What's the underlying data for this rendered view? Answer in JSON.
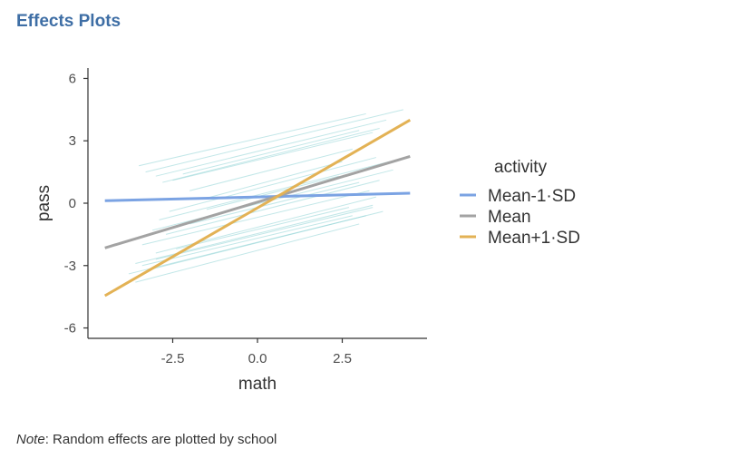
{
  "page": {
    "title": "Effects Plots",
    "note_label": "Note",
    "note_text": ": Random effects are plotted by school"
  },
  "chart_data": {
    "type": "line",
    "title": "",
    "xlabel": "math",
    "ylabel": "pass",
    "xlim": [
      -5,
      5
    ],
    "ylim": [
      -6.5,
      6.5
    ],
    "x_ticks": [
      -2.5,
      0.0,
      2.5
    ],
    "x_tick_labels": [
      "-2.5",
      "0.0",
      "2.5"
    ],
    "y_ticks": [
      -6,
      -3,
      0,
      3,
      6
    ],
    "y_tick_labels": [
      "-6",
      "-3",
      "0",
      "3",
      "6"
    ],
    "grid": false,
    "legend": {
      "title": "activity",
      "position": "right"
    },
    "series": [
      {
        "name": "Mean-1·SD",
        "color": "#7ba3e3",
        "x": [
          -4.5,
          4.5
        ],
        "y": [
          0.12,
          0.48
        ]
      },
      {
        "name": "Mean",
        "color": "#a3a3a3",
        "x": [
          -4.5,
          4.5
        ],
        "y": [
          -2.15,
          2.25
        ]
      },
      {
        "name": "Mean+1·SD",
        "color": "#e3b255",
        "x": [
          -4.5,
          4.5
        ],
        "y": [
          -4.45,
          4.0
        ]
      }
    ],
    "random_effects": {
      "color": "#8fd3d6",
      "lines": [
        {
          "x": [
            -3.3,
            4.3
          ],
          "y": [
            1.5,
            4.5
          ]
        },
        {
          "x": [
            -3.0,
            3.8
          ],
          "y": [
            1.3,
            4.0
          ]
        },
        {
          "x": [
            -2.8,
            3.6
          ],
          "y": [
            1.0,
            3.6
          ]
        },
        {
          "x": [
            -2.5,
            3.4
          ],
          "y": [
            1.1,
            3.4
          ]
        },
        {
          "x": [
            -2.2,
            3.0
          ],
          "y": [
            1.4,
            3.5
          ]
        },
        {
          "x": [
            -3.5,
            3.2
          ],
          "y": [
            1.8,
            4.3
          ]
        },
        {
          "x": [
            -2.0,
            2.8
          ],
          "y": [
            0.6,
            2.6
          ]
        },
        {
          "x": [
            -1.6,
            2.5
          ],
          "y": [
            0.2,
            2.0
          ]
        },
        {
          "x": [
            -2.6,
            3.5
          ],
          "y": [
            -0.4,
            2.2
          ]
        },
        {
          "x": [
            -2.9,
            3.9
          ],
          "y": [
            -0.8,
            2.0
          ]
        },
        {
          "x": [
            -3.1,
            4.0
          ],
          "y": [
            -1.3,
            1.6
          ]
        },
        {
          "x": [
            -2.7,
            3.6
          ],
          "y": [
            -1.5,
            1.1
          ]
        },
        {
          "x": [
            -3.4,
            3.3
          ],
          "y": [
            -2.0,
            0.6
          ]
        },
        {
          "x": [
            -3.0,
            3.5
          ],
          "y": [
            -2.4,
            0.3
          ]
        },
        {
          "x": [
            -3.6,
            3.4
          ],
          "y": [
            -2.9,
            -0.1
          ]
        },
        {
          "x": [
            -3.8,
            3.7
          ],
          "y": [
            -3.4,
            -0.4
          ]
        },
        {
          "x": [
            -3.2,
            3.2
          ],
          "y": [
            -3.2,
            -0.6
          ]
        },
        {
          "x": [
            -3.6,
            3.0
          ],
          "y": [
            -3.8,
            -1.0
          ]
        },
        {
          "x": [
            -3.0,
            3.4
          ],
          "y": [
            -2.7,
            -0.2
          ]
        },
        {
          "x": [
            -2.4,
            2.7
          ],
          "y": [
            -2.2,
            -0.2
          ]
        },
        {
          "x": [
            -2.0,
            3.0
          ],
          "y": [
            -1.0,
            1.0
          ]
        },
        {
          "x": [
            -1.5,
            2.4
          ],
          "y": [
            -0.3,
            1.3
          ]
        },
        {
          "x": [
            -3.4,
            2.8
          ],
          "y": [
            -3.0,
            -0.6
          ]
        }
      ]
    }
  }
}
